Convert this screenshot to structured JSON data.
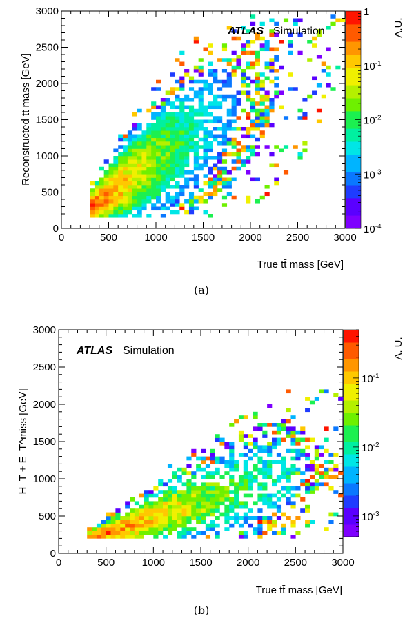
{
  "chart_data": [
    {
      "type": "heatmap",
      "panel_label": "(a)",
      "xlabel": "True tt̄ mass [GeV]",
      "ylabel": "Reconstructed tt̄ mass [GeV]",
      "zlabel": "A.U.",
      "xlim": [
        0,
        3000
      ],
      "ylim": [
        0,
        3000
      ],
      "z_scale": "log",
      "zlim": [
        0.0001,
        1
      ],
      "x_ticks": [
        "0",
        "500",
        "1000",
        "1500",
        "2000",
        "2500",
        "3000"
      ],
      "y_ticks": [
        "0",
        "500",
        "1000",
        "1500",
        "2000",
        "2500",
        "3000"
      ],
      "z_ticks": [
        "10-4",
        "10-3",
        "10-2",
        "10-1",
        "1"
      ],
      "x_tick_values": [
        0,
        500,
        1000,
        1500,
        2000,
        2500,
        3000
      ],
      "y_tick_values": [
        0,
        500,
        1000,
        1500,
        2000,
        2500,
        3000
      ],
      "z_tick_values": [
        0.0001,
        0.001,
        0.01,
        0.1,
        1
      ],
      "atlas_label": "ATLAS",
      "atlas_sublabel": "Simulation",
      "bin_width": 50,
      "x_min_bin": 300,
      "ridge": "diagonal, highest density along y≈x from 300 to ~1200 GeV",
      "points": [
        {
          "x": 350,
          "y": 300,
          "z": 0.5
        },
        {
          "x": 400,
          "y": 350,
          "z": 0.45
        },
        {
          "x": 500,
          "y": 450,
          "z": 0.3
        },
        {
          "x": 600,
          "y": 550,
          "z": 0.2
        },
        {
          "x": 700,
          "y": 650,
          "z": 0.12
        },
        {
          "x": 800,
          "y": 750,
          "z": 0.08
        },
        {
          "x": 1000,
          "y": 950,
          "z": 0.04
        },
        {
          "x": 1200,
          "y": 1150,
          "z": 0.015
        },
        {
          "x": 1500,
          "y": 1450,
          "z": 0.005
        },
        {
          "x": 2000,
          "y": 1900,
          "z": 0.002
        }
      ]
    },
    {
      "type": "heatmap",
      "panel_label": "(b)",
      "xlabel": "True tt̄ mass [GeV]",
      "ylabel": "H_T + E_T^miss [GeV]",
      "zlabel": "A. U.",
      "xlim": [
        0,
        3000
      ],
      "ylim": [
        0,
        3000
      ],
      "z_scale": "log",
      "zlim": [
        0.0005,
        0.5
      ],
      "x_ticks": [
        "0",
        "500",
        "1000",
        "1500",
        "2000",
        "2500",
        "3000"
      ],
      "y_ticks": [
        "0",
        "500",
        "1000",
        "1500",
        "2000",
        "2500",
        "3000"
      ],
      "z_ticks": [
        "10-3",
        "10-2",
        "10-1"
      ],
      "x_tick_values": [
        0,
        500,
        1000,
        1500,
        2000,
        2500,
        3000
      ],
      "y_tick_values": [
        0,
        500,
        1000,
        1500,
        2000,
        2500,
        3000
      ],
      "z_tick_values": [
        0.001,
        0.01,
        0.1
      ],
      "atlas_label": "ATLAS",
      "atlas_sublabel": "Simulation",
      "bin_width": 50,
      "x_min_bin": 300,
      "ridge": "broad band from (300,250) rising toward (2000,1000)",
      "points": [
        {
          "x": 350,
          "y": 250,
          "z": 0.3
        },
        {
          "x": 450,
          "y": 350,
          "z": 0.2
        },
        {
          "x": 600,
          "y": 450,
          "z": 0.12
        },
        {
          "x": 800,
          "y": 550,
          "z": 0.08
        },
        {
          "x": 1000,
          "y": 650,
          "z": 0.06
        },
        {
          "x": 1500,
          "y": 850,
          "z": 0.03
        },
        {
          "x": 2000,
          "y": 1000,
          "z": 0.015
        },
        {
          "x": 2400,
          "y": 1100,
          "z": 0.005
        }
      ]
    }
  ]
}
